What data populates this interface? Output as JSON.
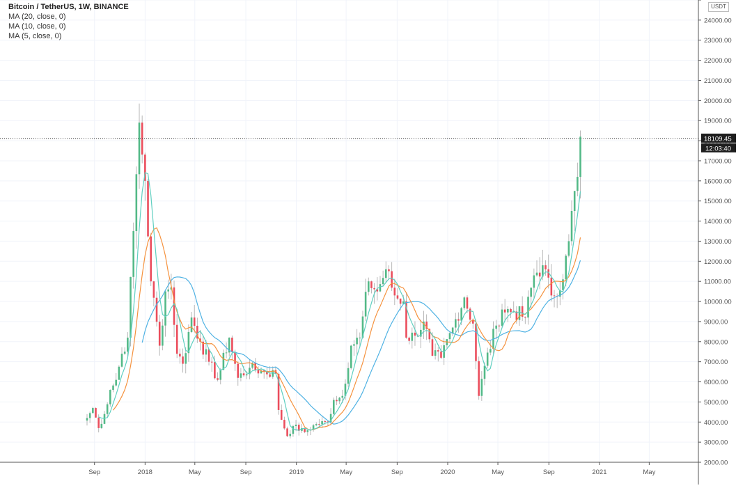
{
  "header": {
    "symbol": "Bitcoin / TetherUS, 1W, BINANCE",
    "indicators": [
      "MA (20, close, 0)",
      "MA (10, close, 0)",
      "MA (5, close, 0)"
    ],
    "unit": "USDT"
  },
  "chart_data": {
    "type": "candlestick",
    "ylim": [
      2000,
      25000
    ],
    "y_ticks": [
      2000,
      3000,
      4000,
      5000,
      6000,
      7000,
      8000,
      9000,
      10000,
      11000,
      12000,
      13000,
      14000,
      15000,
      16000,
      17000,
      18000,
      19000,
      20000,
      21000,
      22000,
      23000,
      24000,
      25000
    ],
    "y_tick_labels": [
      "2000.00",
      "3000.00",
      "4000.00",
      "5000.00",
      "6000.00",
      "7000.00",
      "8000.00",
      "9000.00",
      "10000.00",
      "11000.00",
      "12000.00",
      "13000.00",
      "14000.00",
      "15000.00",
      "16000.00",
      "17000.00",
      "18000.00",
      "19000.00",
      "20000.00",
      "21000.00",
      "22000.00",
      "23000.00",
      "24000.00",
      ""
    ],
    "x_range": [
      "2017-08-14",
      "2021-07-20"
    ],
    "x_ticks": [
      {
        "date": "2017-09-01",
        "label": "Sep"
      },
      {
        "date": "2018-01-01",
        "label": "2018"
      },
      {
        "date": "2018-05-01",
        "label": "May"
      },
      {
        "date": "2018-09-01",
        "label": "Sep"
      },
      {
        "date": "2019-01-01",
        "label": "2019"
      },
      {
        "date": "2019-05-01",
        "label": "May"
      },
      {
        "date": "2019-09-01",
        "label": "Sep"
      },
      {
        "date": "2020-01-01",
        "label": "2020"
      },
      {
        "date": "2020-05-01",
        "label": "May"
      },
      {
        "date": "2020-09-01",
        "label": "Sep"
      },
      {
        "date": "2021-01-01",
        "label": "2021"
      },
      {
        "date": "2021-05-01",
        "label": "May"
      }
    ],
    "anchors": [
      [
        "2017-08-14",
        4200
      ],
      [
        "2017-08-28",
        4700
      ],
      [
        "2017-09-11",
        3700
      ],
      [
        "2017-09-25",
        4400
      ],
      [
        "2017-10-09",
        5600
      ],
      [
        "2017-10-23",
        6100
      ],
      [
        "2017-11-06",
        7400
      ],
      [
        "2017-11-20",
        8200
      ],
      [
        "2017-12-04",
        13500
      ],
      [
        "2017-12-18",
        18900
      ],
      [
        "2018-01-01",
        16000
      ],
      [
        "2018-01-15",
        11000
      ],
      [
        "2018-02-05",
        7800
      ],
      [
        "2018-02-19",
        10500
      ],
      [
        "2018-03-05",
        10700
      ],
      [
        "2018-03-19",
        7400
      ],
      [
        "2018-04-02",
        6900
      ],
      [
        "2018-04-23",
        9200
      ],
      [
        "2018-05-14",
        8000
      ],
      [
        "2018-06-04",
        7000
      ],
      [
        "2018-06-25",
        6100
      ],
      [
        "2018-07-23",
        8200
      ],
      [
        "2018-08-13",
        6200
      ],
      [
        "2018-09-10",
        6700
      ],
      [
        "2018-10-15",
        6500
      ],
      [
        "2018-11-12",
        6400
      ],
      [
        "2018-11-19",
        4600
      ],
      [
        "2018-12-10",
        3300
      ],
      [
        "2018-12-24",
        3800
      ],
      [
        "2019-01-21",
        3500
      ],
      [
        "2019-02-18",
        3900
      ],
      [
        "2019-03-18",
        4000
      ],
      [
        "2019-04-01",
        5100
      ],
      [
        "2019-04-22",
        5300
      ],
      [
        "2019-05-13",
        7800
      ],
      [
        "2019-06-03",
        8200
      ],
      [
        "2019-06-24",
        11000
      ],
      [
        "2019-07-15",
        10500
      ],
      [
        "2019-08-05",
        11600
      ],
      [
        "2019-08-26",
        10300
      ],
      [
        "2019-09-16",
        10000
      ],
      [
        "2019-09-23",
        8200
      ],
      [
        "2019-10-14",
        8300
      ],
      [
        "2019-11-04",
        9000
      ],
      [
        "2019-11-25",
        7300
      ],
      [
        "2019-12-16",
        7200
      ],
      [
        "2020-01-13",
        8700
      ],
      [
        "2020-02-10",
        10200
      ],
      [
        "2020-03-02",
        8900
      ],
      [
        "2020-03-16",
        5300
      ],
      [
        "2020-03-30",
        6800
      ],
      [
        "2020-04-27",
        8800
      ],
      [
        "2020-05-11",
        9600
      ],
      [
        "2020-06-08",
        9500
      ],
      [
        "2020-07-06",
        9200
      ],
      [
        "2020-07-27",
        11300
      ],
      [
        "2020-08-17",
        11800
      ],
      [
        "2020-09-07",
        10300
      ],
      [
        "2020-10-05",
        11100
      ],
      [
        "2020-10-19",
        13000
      ],
      [
        "2020-11-02",
        15500
      ],
      [
        "2020-11-09",
        16200
      ],
      [
        "2020-11-16",
        18200
      ]
    ],
    "series": [
      {
        "name": "MA (20, close, 0)",
        "color": "#4fb2e3"
      },
      {
        "name": "MA (10, close, 0)",
        "color": "#f5923e"
      },
      {
        "name": "MA (5, close, 0)",
        "color": "#5fcfc0"
      }
    ],
    "colors": {
      "up": "#53b987",
      "down": "#eb4d5c",
      "wick": "#b7b7b7",
      "grid": "#f0f3fa",
      "axis": "#555555"
    },
    "last_price": {
      "value": 18109.45,
      "label": "18109.45",
      "countdown": "12:03:40"
    }
  }
}
